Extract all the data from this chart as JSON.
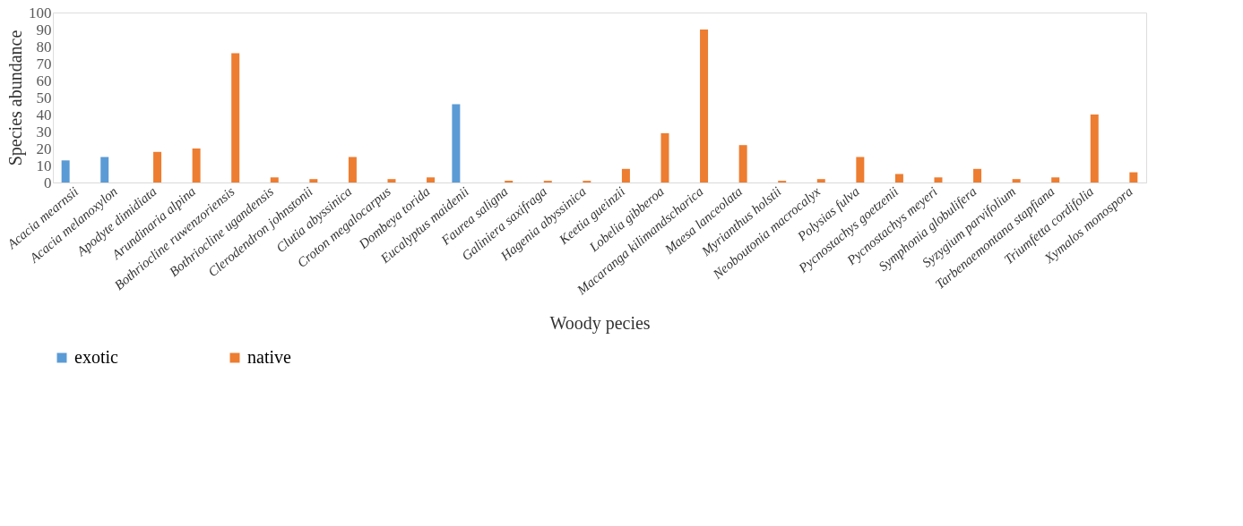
{
  "chart_data": {
    "type": "bar",
    "xlabel": "Woody pecies",
    "ylabel": "Species abundance",
    "categories": [
      "Acacia mearnsii",
      "Acacia melanoxylon",
      "Apodyte dimidiata",
      "Arundinaria alpina",
      "Bothriocline ruwenzoriensis",
      "Bothriocline ugandensis",
      "Clerodendron johnstonii",
      "Clutia abyssinica",
      "Croton megalocarpus",
      "Dombeya torida",
      "Eucalyptus maidenii",
      "Faurea saligna",
      "Galiniera saxifraga",
      "Hagenia abyssinica",
      "Keetia gueinzii",
      "Lobelia gibberoa",
      "Macaranga kilimandscharica",
      "Maesa lanceolata",
      "Myrianthus holstii",
      "Neoboutonia macrocalyx",
      "Polysias fulva",
      "Pycnostachys goetzenii",
      "Pycnostachys meyeri",
      "Symphonia globulifera",
      "Syzygium  parvifolium",
      "Tarbenaemontana stapfiana",
      "Triumfetta cordifolia",
      "Xymalos monospora"
    ],
    "series": [
      {
        "name": "exotic",
        "color": "#5b9bd5",
        "values": [
          13,
          15,
          null,
          null,
          null,
          null,
          null,
          null,
          null,
          null,
          46,
          null,
          null,
          null,
          null,
          null,
          null,
          null,
          null,
          null,
          null,
          null,
          null,
          null,
          null,
          null,
          null,
          null
        ]
      },
      {
        "name": "native",
        "color": "#ed7d31",
        "values": [
          null,
          null,
          18,
          20,
          76,
          3,
          2,
          15,
          2,
          3,
          null,
          1,
          1,
          1,
          8,
          29,
          90,
          22,
          1,
          2,
          15,
          5,
          3,
          8,
          2,
          3,
          40,
          6
        ]
      }
    ],
    "ylim": [
      0,
      100
    ],
    "yticks": [
      0,
      10,
      20,
      30,
      40,
      50,
      60,
      70,
      80,
      90,
      100
    ],
    "grid": false,
    "legend": "bottom"
  }
}
